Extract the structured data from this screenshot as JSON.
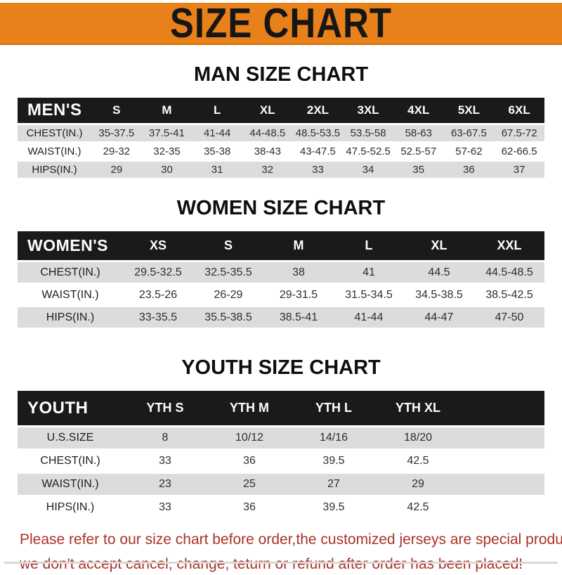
{
  "banner": {
    "title": "SIZE CHART"
  },
  "sections": [
    {
      "heading": "MAN SIZE CHART",
      "table": {
        "header_label": "MEN'S",
        "columns": [
          "S",
          "M",
          "L",
          "XL",
          "2XL",
          "3XL",
          "4XL",
          "5XL",
          "6XL"
        ],
        "rows": [
          {
            "label": "CHEST(IN.)",
            "values": [
              "35-37.5",
              "37.5-41",
              "41-44",
              "44-48.5",
              "48.5-53.5",
              "53.5-58",
              "58-63",
              "63-67.5",
              "67.5-72"
            ]
          },
          {
            "label": "WAIST(IN.)",
            "values": [
              "29-32",
              "32-35",
              "35-38",
              "38-43",
              "43-47.5",
              "47.5-52.5",
              "52.5-57",
              "57-62",
              "62-66.5"
            ]
          },
          {
            "label": "HIPS(IN.)",
            "values": [
              "29",
              "30",
              "31",
              "32",
              "33",
              "34",
              "35",
              "36",
              "37"
            ]
          }
        ]
      }
    },
    {
      "heading": "WOMEN SIZE CHART",
      "table": {
        "header_label": "WOMEN'S",
        "columns": [
          "XS",
          "S",
          "M",
          "L",
          "XL",
          "XXL"
        ],
        "rows": [
          {
            "label": "CHEST(IN.)",
            "values": [
              "29.5-32.5",
              "32.5-35.5",
              "38",
              "41",
              "44.5",
              "44.5-48.5"
            ]
          },
          {
            "label": "WAIST(IN.)",
            "values": [
              "23.5-26",
              "26-29",
              "29-31.5",
              "31.5-34.5",
              "34.5-38.5",
              "38.5-42.5"
            ]
          },
          {
            "label": "HIPS(IN.)",
            "values": [
              "33-35.5",
              "35.5-38.5",
              "38.5-41",
              "41-44",
              "44-47",
              "47-50"
            ]
          }
        ]
      }
    },
    {
      "heading": "YOUTH SIZE CHART",
      "table": {
        "header_label": "YOUTH",
        "columns": [
          "YTH S",
          "YTH M",
          "YTH L",
          "YTH XL"
        ],
        "rows": [
          {
            "label": "U.S.SIZE",
            "values": [
              "8",
              "10/12",
              "14/16",
              "18/20"
            ]
          },
          {
            "label": "CHEST(IN.)",
            "values": [
              "33",
              "36",
              "39.5",
              "42.5"
            ]
          },
          {
            "label": "WAIST(IN.)",
            "values": [
              "23",
              "25",
              "27",
              "29"
            ]
          },
          {
            "label": "HIPS(IN.)",
            "values": [
              "33",
              "36",
              "39.5",
              "42.5"
            ]
          }
        ]
      }
    }
  ],
  "footer": {
    "line1": "Please refer to our size chart before order,the customized jerseys are special products,",
    "line2": "we don't accept cancel, change, teturn or refund after order has been placed!"
  },
  "colors": {
    "banner_bg": "#E8811A",
    "header_bg": "#1A1A1A",
    "row_stripe": "#DCDCDC",
    "notice_text": "#A93226"
  }
}
